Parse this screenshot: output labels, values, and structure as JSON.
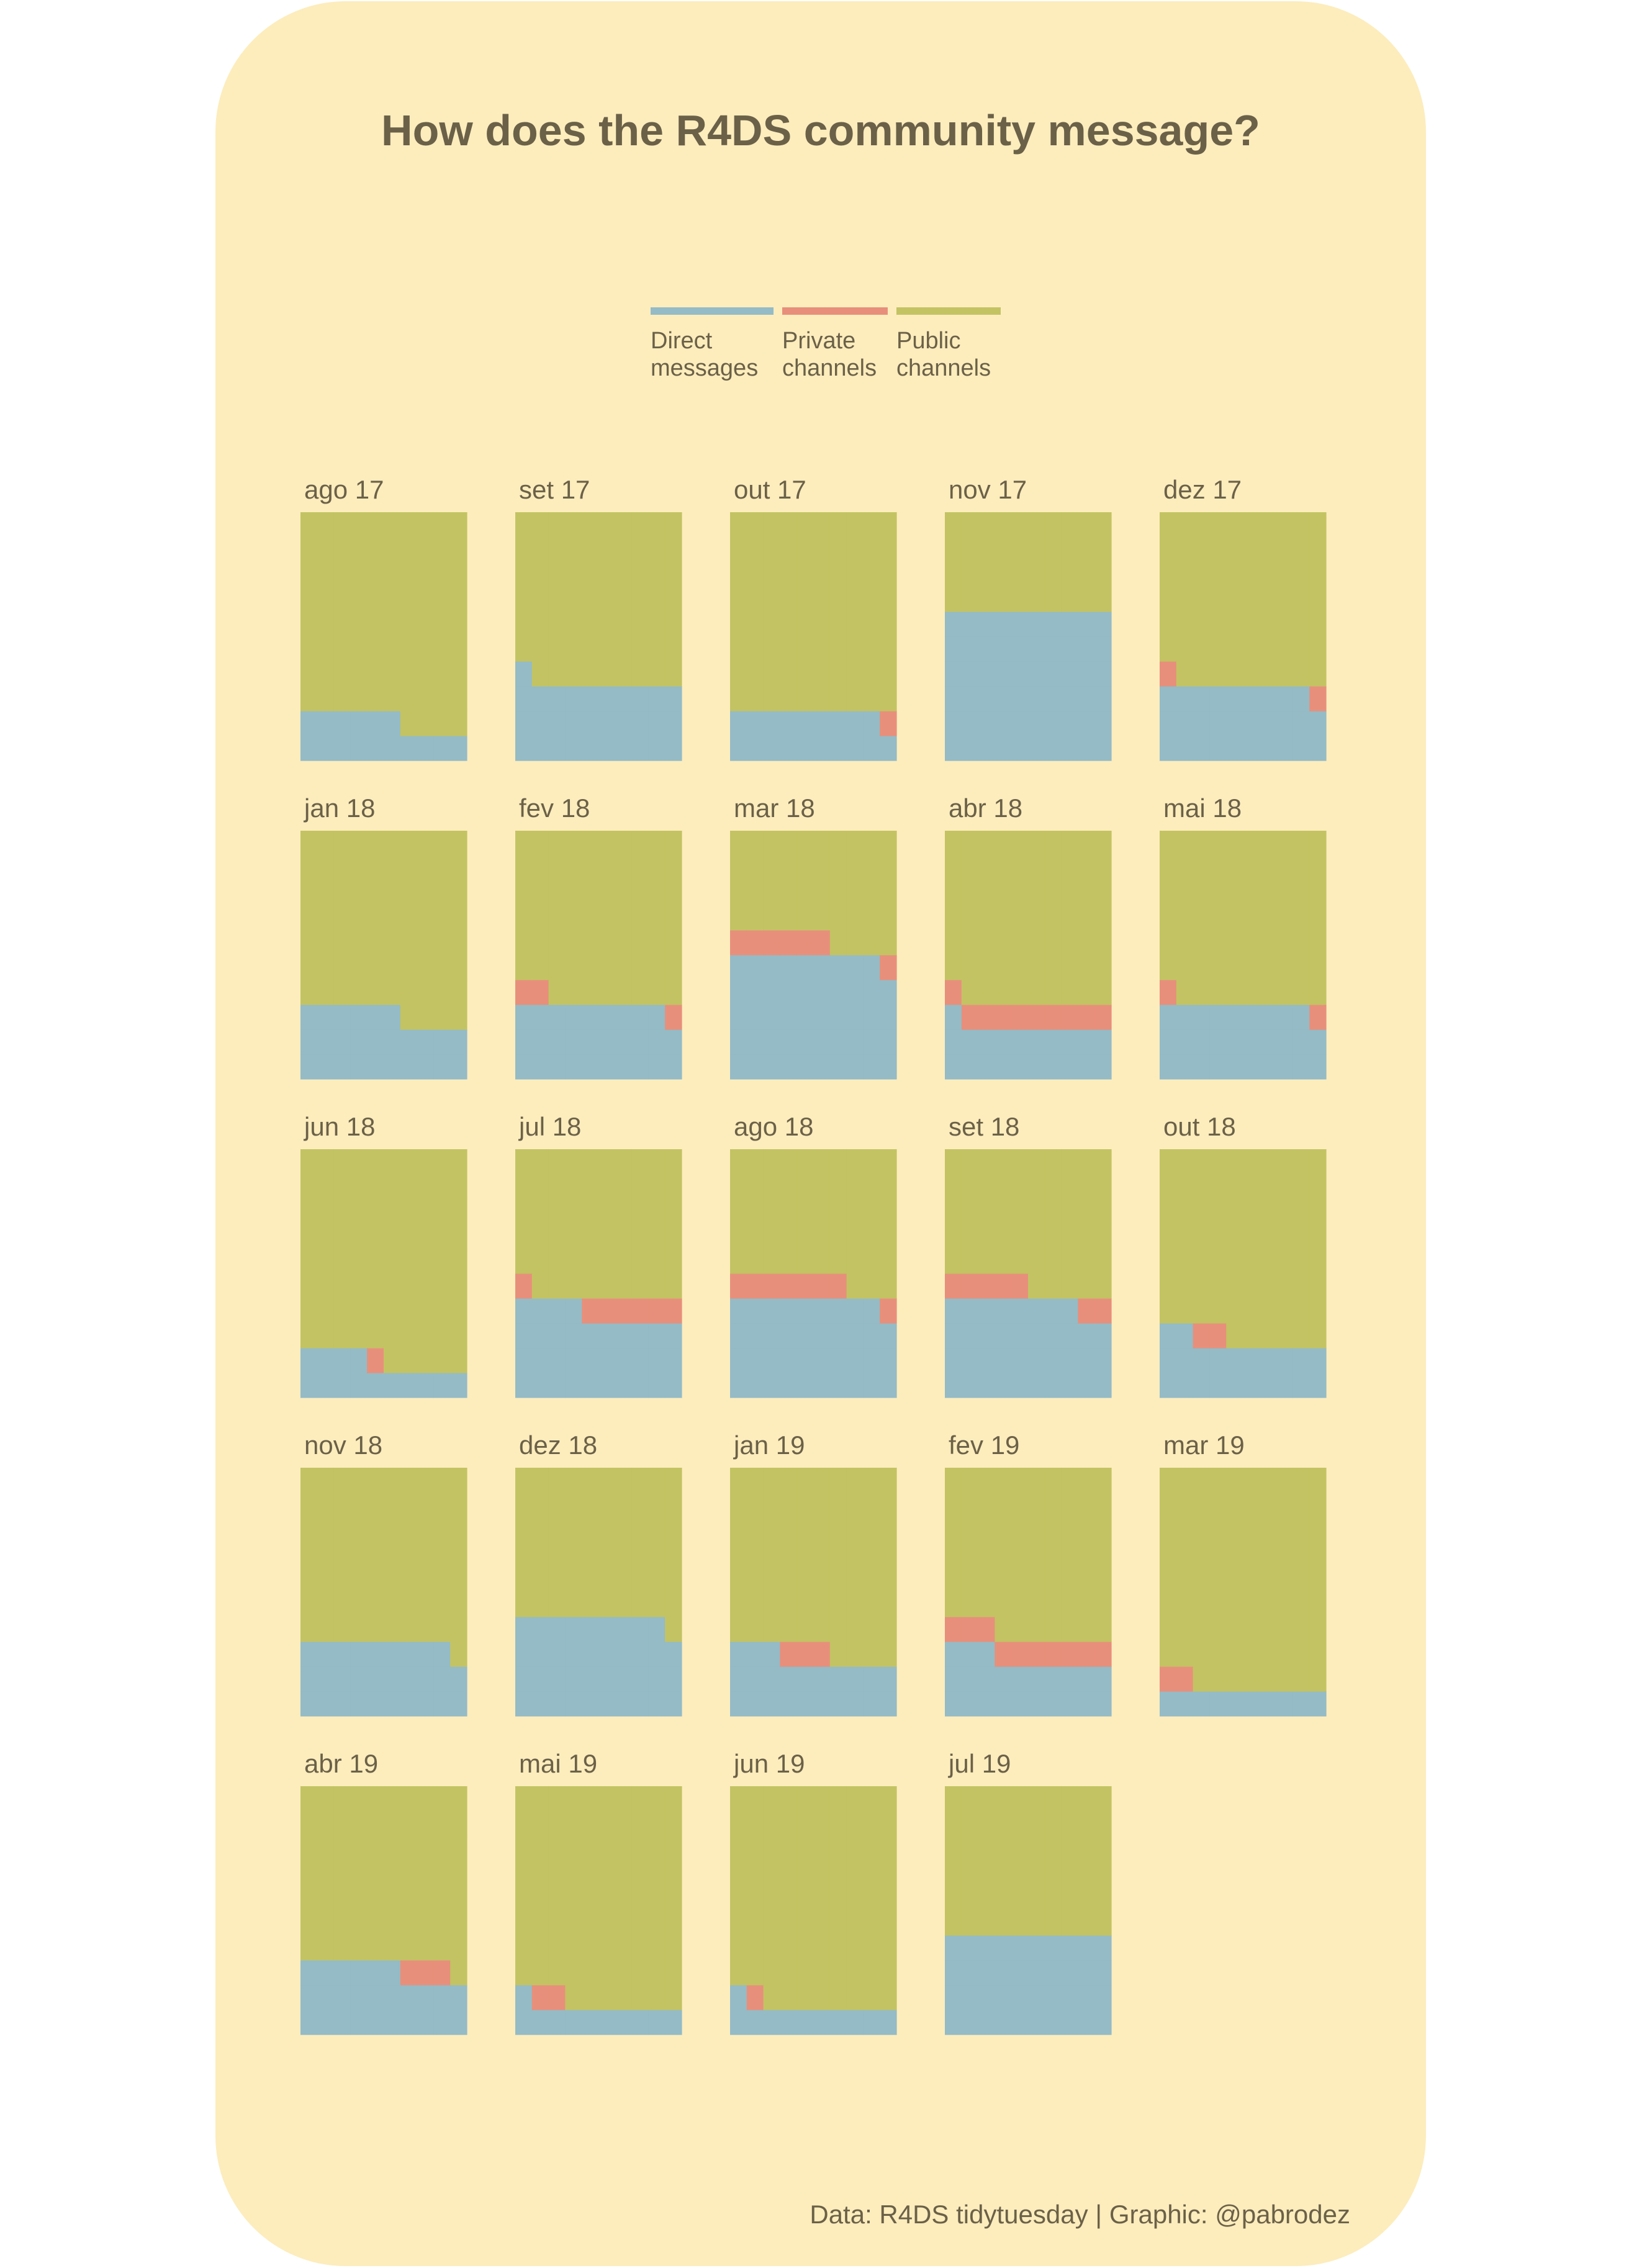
{
  "title": "How does the R4DS community message?",
  "caption": "Data: R4DS tidytuesday | Graphic: @pabrodez",
  "colors": {
    "background": "#fdedbd",
    "text": "#6b6148",
    "direct": "#94bbc6",
    "private": "#e88f7b",
    "public": "#c3c363"
  },
  "legend": [
    {
      "key": "direct",
      "label": "Direct\nmessages"
    },
    {
      "key": "private",
      "label": "Private\nchannels"
    },
    {
      "key": "public",
      "label": "Public\nchannels"
    }
  ],
  "chart_data": {
    "type": "waffle",
    "grid": "10 rows x 10 cells per month (approximate share of messages by channel type)",
    "series": [
      "direct",
      "private",
      "public"
    ],
    "months": [
      {
        "label": "ago 17",
        "direct": 16,
        "private": 0,
        "public": 84
      },
      {
        "label": "set 17",
        "direct": 31,
        "private": 0,
        "public": 69
      },
      {
        "label": "out 17",
        "direct": 19,
        "private": 1,
        "public": 80
      },
      {
        "label": "nov 17",
        "direct": 60,
        "private": 0,
        "public": 40
      },
      {
        "label": "dez 17",
        "direct": 29,
        "private": 2,
        "public": 69
      },
      {
        "label": "jan 18",
        "direct": 26,
        "private": 0,
        "public": 74
      },
      {
        "label": "fev 18",
        "direct": 29,
        "private": 3,
        "public": 68
      },
      {
        "label": "mar 18",
        "direct": 49,
        "private": 7,
        "public": 44
      },
      {
        "label": "abr 18",
        "direct": 21,
        "private": 10,
        "public": 69
      },
      {
        "label": "mai 18",
        "direct": 29,
        "private": 2,
        "public": 69
      },
      {
        "label": "jun 18",
        "direct": 14,
        "private": 1,
        "public": 85
      },
      {
        "label": "jul 18",
        "direct": 34,
        "private": 7,
        "public": 59
      },
      {
        "label": "ago 18",
        "direct": 39,
        "private": 8,
        "public": 53
      },
      {
        "label": "set 18",
        "direct": 38,
        "private": 7,
        "public": 55
      },
      {
        "label": "out 18",
        "direct": 22,
        "private": 2,
        "public": 76
      },
      {
        "label": "nov 18",
        "direct": 29,
        "private": 0,
        "public": 71
      },
      {
        "label": "dez 18",
        "direct": 39,
        "private": 0,
        "public": 61
      },
      {
        "label": "jan 19",
        "direct": 23,
        "private": 3,
        "public": 74
      },
      {
        "label": "fev 19",
        "direct": 23,
        "private": 10,
        "public": 67
      },
      {
        "label": "mar 19",
        "direct": 10,
        "private": 2,
        "public": 88
      },
      {
        "label": "abr 19",
        "direct": 26,
        "private": 3,
        "public": 71
      },
      {
        "label": "mai 19",
        "direct": 11,
        "private": 2,
        "public": 87
      },
      {
        "label": "jun 19",
        "direct": 11,
        "private": 1,
        "public": 88
      },
      {
        "label": "jul 19",
        "direct": 40,
        "private": 0,
        "public": 60
      }
    ]
  }
}
